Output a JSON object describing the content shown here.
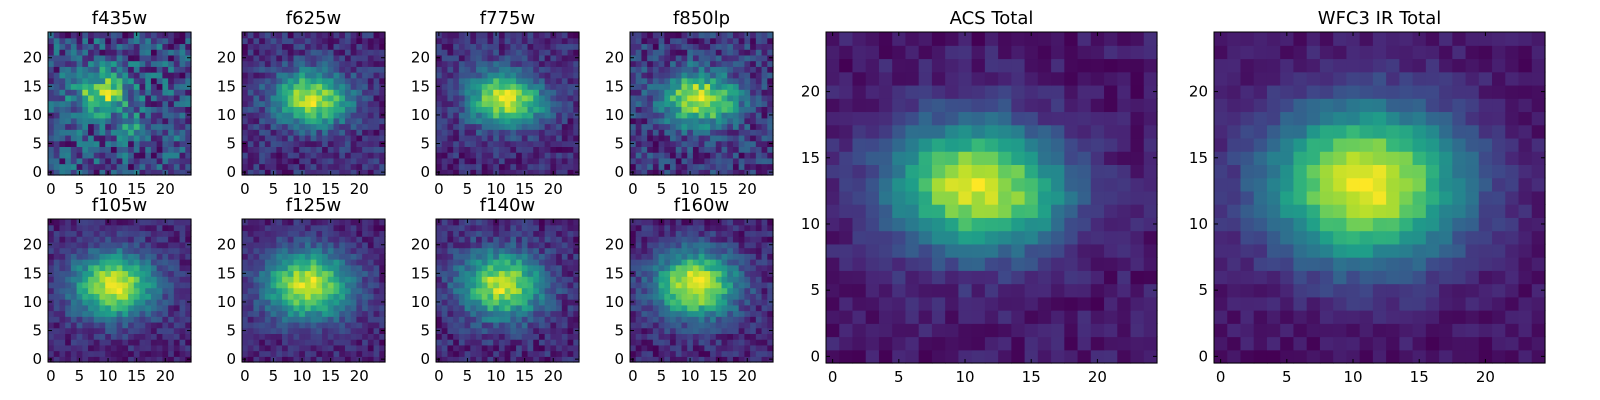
{
  "chart_data": [
    {
      "type": "heatmap",
      "title": "f435w",
      "xticks": [
        0,
        5,
        10,
        15,
        20
      ],
      "yticks": [
        0,
        5,
        10,
        15,
        20
      ],
      "xlim": [
        0,
        24
      ],
      "ylim": [
        0,
        24
      ],
      "grid": false,
      "peaks": [
        {
          "x": 9,
          "y": 14,
          "s": 2.6,
          "a": 0.8
        },
        {
          "x": 14,
          "y": 8,
          "s": 1.4,
          "a": 0.4
        }
      ],
      "noise": 0.32,
      "seed": 3
    },
    {
      "type": "heatmap",
      "title": "f625w",
      "xticks": [
        0,
        5,
        10,
        15,
        20
      ],
      "yticks": [
        0,
        5,
        10,
        15,
        20
      ],
      "xlim": [
        0,
        24
      ],
      "ylim": [
        0,
        24
      ],
      "grid": false,
      "peaks": [
        {
          "x": 11,
          "y": 13,
          "s": 3.4,
          "a": 1.0
        },
        {
          "x": 16,
          "y": 12,
          "s": 2.5,
          "a": 0.25
        }
      ],
      "noise": 0.18,
      "seed": 7
    },
    {
      "type": "heatmap",
      "title": "f775w",
      "xticks": [
        0,
        5,
        10,
        15,
        20
      ],
      "yticks": [
        0,
        5,
        10,
        15,
        20
      ],
      "xlim": [
        0,
        24
      ],
      "ylim": [
        0,
        24
      ],
      "grid": false,
      "peaks": [
        {
          "x": 11,
          "y": 13,
          "s": 3.4,
          "a": 1.0
        },
        {
          "x": 16,
          "y": 12,
          "s": 2.5,
          "a": 0.25
        }
      ],
      "noise": 0.16,
      "seed": 11
    },
    {
      "type": "heatmap",
      "title": "f850lp",
      "xticks": [
        0,
        5,
        10,
        15,
        20
      ],
      "yticks": [
        0,
        5,
        10,
        15,
        20
      ],
      "xlim": [
        0,
        24
      ],
      "ylim": [
        0,
        24
      ],
      "grid": false,
      "peaks": [
        {
          "x": 11,
          "y": 13,
          "s": 3.2,
          "a": 0.95
        },
        {
          "x": 16,
          "y": 12,
          "s": 2.5,
          "a": 0.25
        }
      ],
      "noise": 0.22,
      "seed": 13
    },
    {
      "type": "heatmap",
      "title": "f105w",
      "xticks": [
        0,
        5,
        10,
        15,
        20
      ],
      "yticks": [
        0,
        5,
        10,
        15,
        20
      ],
      "xlim": [
        0,
        24
      ],
      "ylim": [
        0,
        24
      ],
      "grid": false,
      "peaks": [
        {
          "x": 11,
          "y": 13,
          "s": 4.0,
          "a": 1.0
        }
      ],
      "noise": 0.12,
      "seed": 17
    },
    {
      "type": "heatmap",
      "title": "f125w",
      "xticks": [
        0,
        5,
        10,
        15,
        20
      ],
      "yticks": [
        0,
        5,
        10,
        15,
        20
      ],
      "xlim": [
        0,
        24
      ],
      "ylim": [
        0,
        24
      ],
      "grid": false,
      "peaks": [
        {
          "x": 11,
          "y": 13,
          "s": 4.2,
          "a": 1.0
        }
      ],
      "noise": 0.12,
      "seed": 19
    },
    {
      "type": "heatmap",
      "title": "f140w",
      "xticks": [
        0,
        5,
        10,
        15,
        20
      ],
      "yticks": [
        0,
        5,
        10,
        15,
        20
      ],
      "xlim": [
        0,
        24
      ],
      "ylim": [
        0,
        24
      ],
      "grid": false,
      "peaks": [
        {
          "x": 11,
          "y": 13,
          "s": 4.0,
          "a": 1.0
        }
      ],
      "noise": 0.15,
      "seed": 23
    },
    {
      "type": "heatmap",
      "title": "f160w",
      "xticks": [
        0,
        5,
        10,
        15,
        20
      ],
      "yticks": [
        0,
        5,
        10,
        15,
        20
      ],
      "xlim": [
        0,
        24
      ],
      "ylim": [
        0,
        24
      ],
      "grid": false,
      "peaks": [
        {
          "x": 11,
          "y": 13,
          "s": 4.0,
          "a": 1.0
        }
      ],
      "noise": 0.13,
      "seed": 29
    },
    {
      "type": "heatmap",
      "title": "ACS Total",
      "xticks": [
        0,
        5,
        10,
        15,
        20
      ],
      "yticks": [
        0,
        5,
        10,
        15,
        20
      ],
      "xlim": [
        0,
        24
      ],
      "ylim": [
        0,
        24
      ],
      "grid": false,
      "peaks": [
        {
          "x": 10,
          "y": 13,
          "s": 3.4,
          "a": 1.0
        },
        {
          "x": 15,
          "y": 12,
          "s": 2.8,
          "a": 0.3
        }
      ],
      "noise": 0.09,
      "seed": 31
    },
    {
      "type": "heatmap",
      "title": "WFC3 IR Total",
      "xticks": [
        0,
        5,
        10,
        15,
        20
      ],
      "yticks": [
        0,
        5,
        10,
        15,
        20
      ],
      "xlim": [
        0,
        24
      ],
      "ylim": [
        0,
        24
      ],
      "grid": false,
      "peaks": [
        {
          "x": 11,
          "y": 13,
          "s": 4.2,
          "a": 1.0
        }
      ],
      "noise": 0.06,
      "seed": 37
    }
  ],
  "colormap": [
    "#440154",
    "#482878",
    "#3e4989",
    "#31688e",
    "#26828e",
    "#1f9e89",
    "#35b779",
    "#6ece58",
    "#b5de2b",
    "#fde725"
  ]
}
